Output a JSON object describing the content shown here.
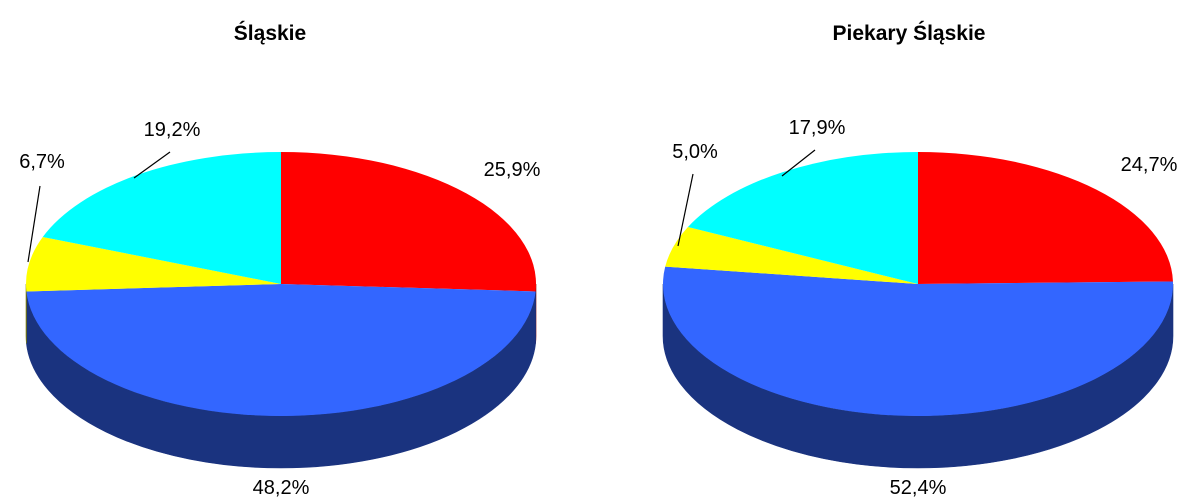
{
  "chart_data": [
    {
      "type": "pie",
      "title": "Śląskie",
      "slices": [
        {
          "value": 25.9,
          "label": "25,9%",
          "color": "#FF0000",
          "side_color": "#800000"
        },
        {
          "value": 48.2,
          "label": "48,2%",
          "color": "#3366FF",
          "side_color": "#1A337F"
        },
        {
          "value": 6.7,
          "label": "6,7%",
          "color": "#FFFF00",
          "side_color": "#808000"
        },
        {
          "value": 19.2,
          "label": "19,2%",
          "color": "#00FFFF",
          "side_color": "#008080"
        }
      ],
      "three_d": true,
      "legend": "none"
    },
    {
      "type": "pie",
      "title": "Piekary Śląskie",
      "slices": [
        {
          "value": 24.7,
          "label": "24,7%",
          "color": "#FF0000",
          "side_color": "#800000"
        },
        {
          "value": 52.4,
          "label": "52,4%",
          "color": "#3366FF",
          "side_color": "#1A337F"
        },
        {
          "value": 5.0,
          "label": "5,0%",
          "color": "#FFFF00",
          "side_color": "#808000"
        },
        {
          "value": 17.9,
          "label": "17,9%",
          "color": "#00FFFF",
          "side_color": "#008080"
        }
      ],
      "three_d": true,
      "legend": "none"
    }
  ]
}
